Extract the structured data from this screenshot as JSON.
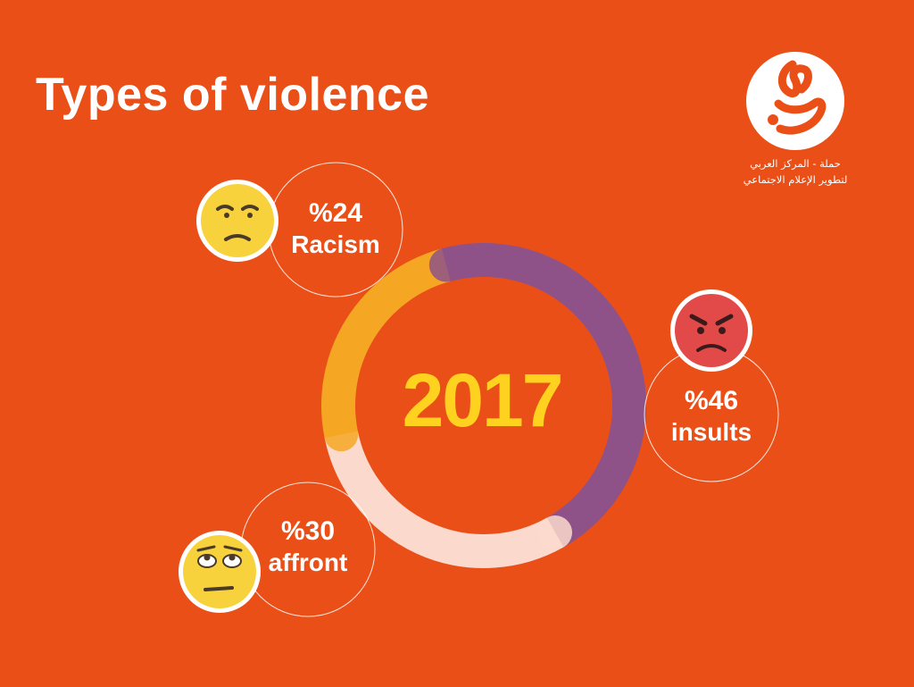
{
  "title": "Types of violence",
  "logo": {
    "line1": "حملة - المركز العربي",
    "line2": "لتطوير الإعلام الاجتماعي"
  },
  "colors": {
    "background": "#ea4f18",
    "racism": "#f5a623",
    "insults": "#8e5288",
    "affront": "#fbd9cd",
    "year": "#ffd21f"
  },
  "chart_data": {
    "type": "pie",
    "variant": "donut",
    "center_label": "2017",
    "slices": [
      {
        "label": "insults",
        "percent_label": "%46",
        "value": 46,
        "color": "#8e5288",
        "emoji": "angry-face"
      },
      {
        "label": "affront",
        "percent_label": "%30",
        "value": 30,
        "color": "#fbd9cd",
        "emoji": "eye-roll-face"
      },
      {
        "label": "Racism",
        "percent_label": "%24",
        "value": 24,
        "color": "#f5a623",
        "emoji": "unamused-face"
      }
    ]
  }
}
